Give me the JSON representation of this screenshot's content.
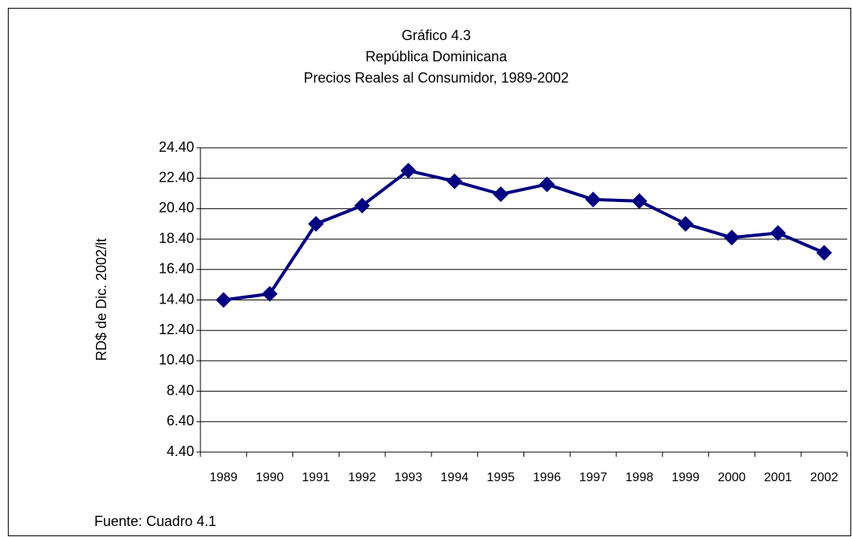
{
  "chart_data": {
    "type": "line",
    "title": [
      "Gráfico 4.3",
      "República Dominicana",
      "Precios Reales al Consumidor, 1989-2002"
    ],
    "y_label": "RD$ de Dic. 2002/lt",
    "note": "Fuente: Cuadro 4.1",
    "categories": [
      "1989",
      "1990",
      "1991",
      "1992",
      "1993",
      "1994",
      "1995",
      "1996",
      "1997",
      "1998",
      "1999",
      "2000",
      "2001",
      "2002"
    ],
    "series": [
      {
        "color": "#000080",
        "values": [
          14.4,
          14.8,
          19.4,
          20.6,
          22.9,
          22.2,
          21.35,
          22.0,
          21.0,
          20.9,
          19.4,
          18.5,
          18.8,
          17.5
        ]
      }
    ],
    "ylim": [
      4.4,
      24.4
    ],
    "yticks": [
      {
        "value": 4.4,
        "label": "4.40"
      },
      {
        "value": 6.4,
        "label": "6.40"
      },
      {
        "value": 8.4,
        "label": "8.40"
      },
      {
        "value": 10.4,
        "label": "10.40"
      },
      {
        "value": 12.4,
        "label": "12.40"
      },
      {
        "value": 14.4,
        "label": "14.40"
      },
      {
        "value": 16.4,
        "label": "16.40"
      },
      {
        "value": 18.4,
        "label": "18.40"
      },
      {
        "value": 20.4,
        "label": "20.40"
      },
      {
        "value": 22.4,
        "label": "22.40"
      },
      {
        "value": 24.4,
        "label": "24.40"
      }
    ],
    "grid": true
  }
}
